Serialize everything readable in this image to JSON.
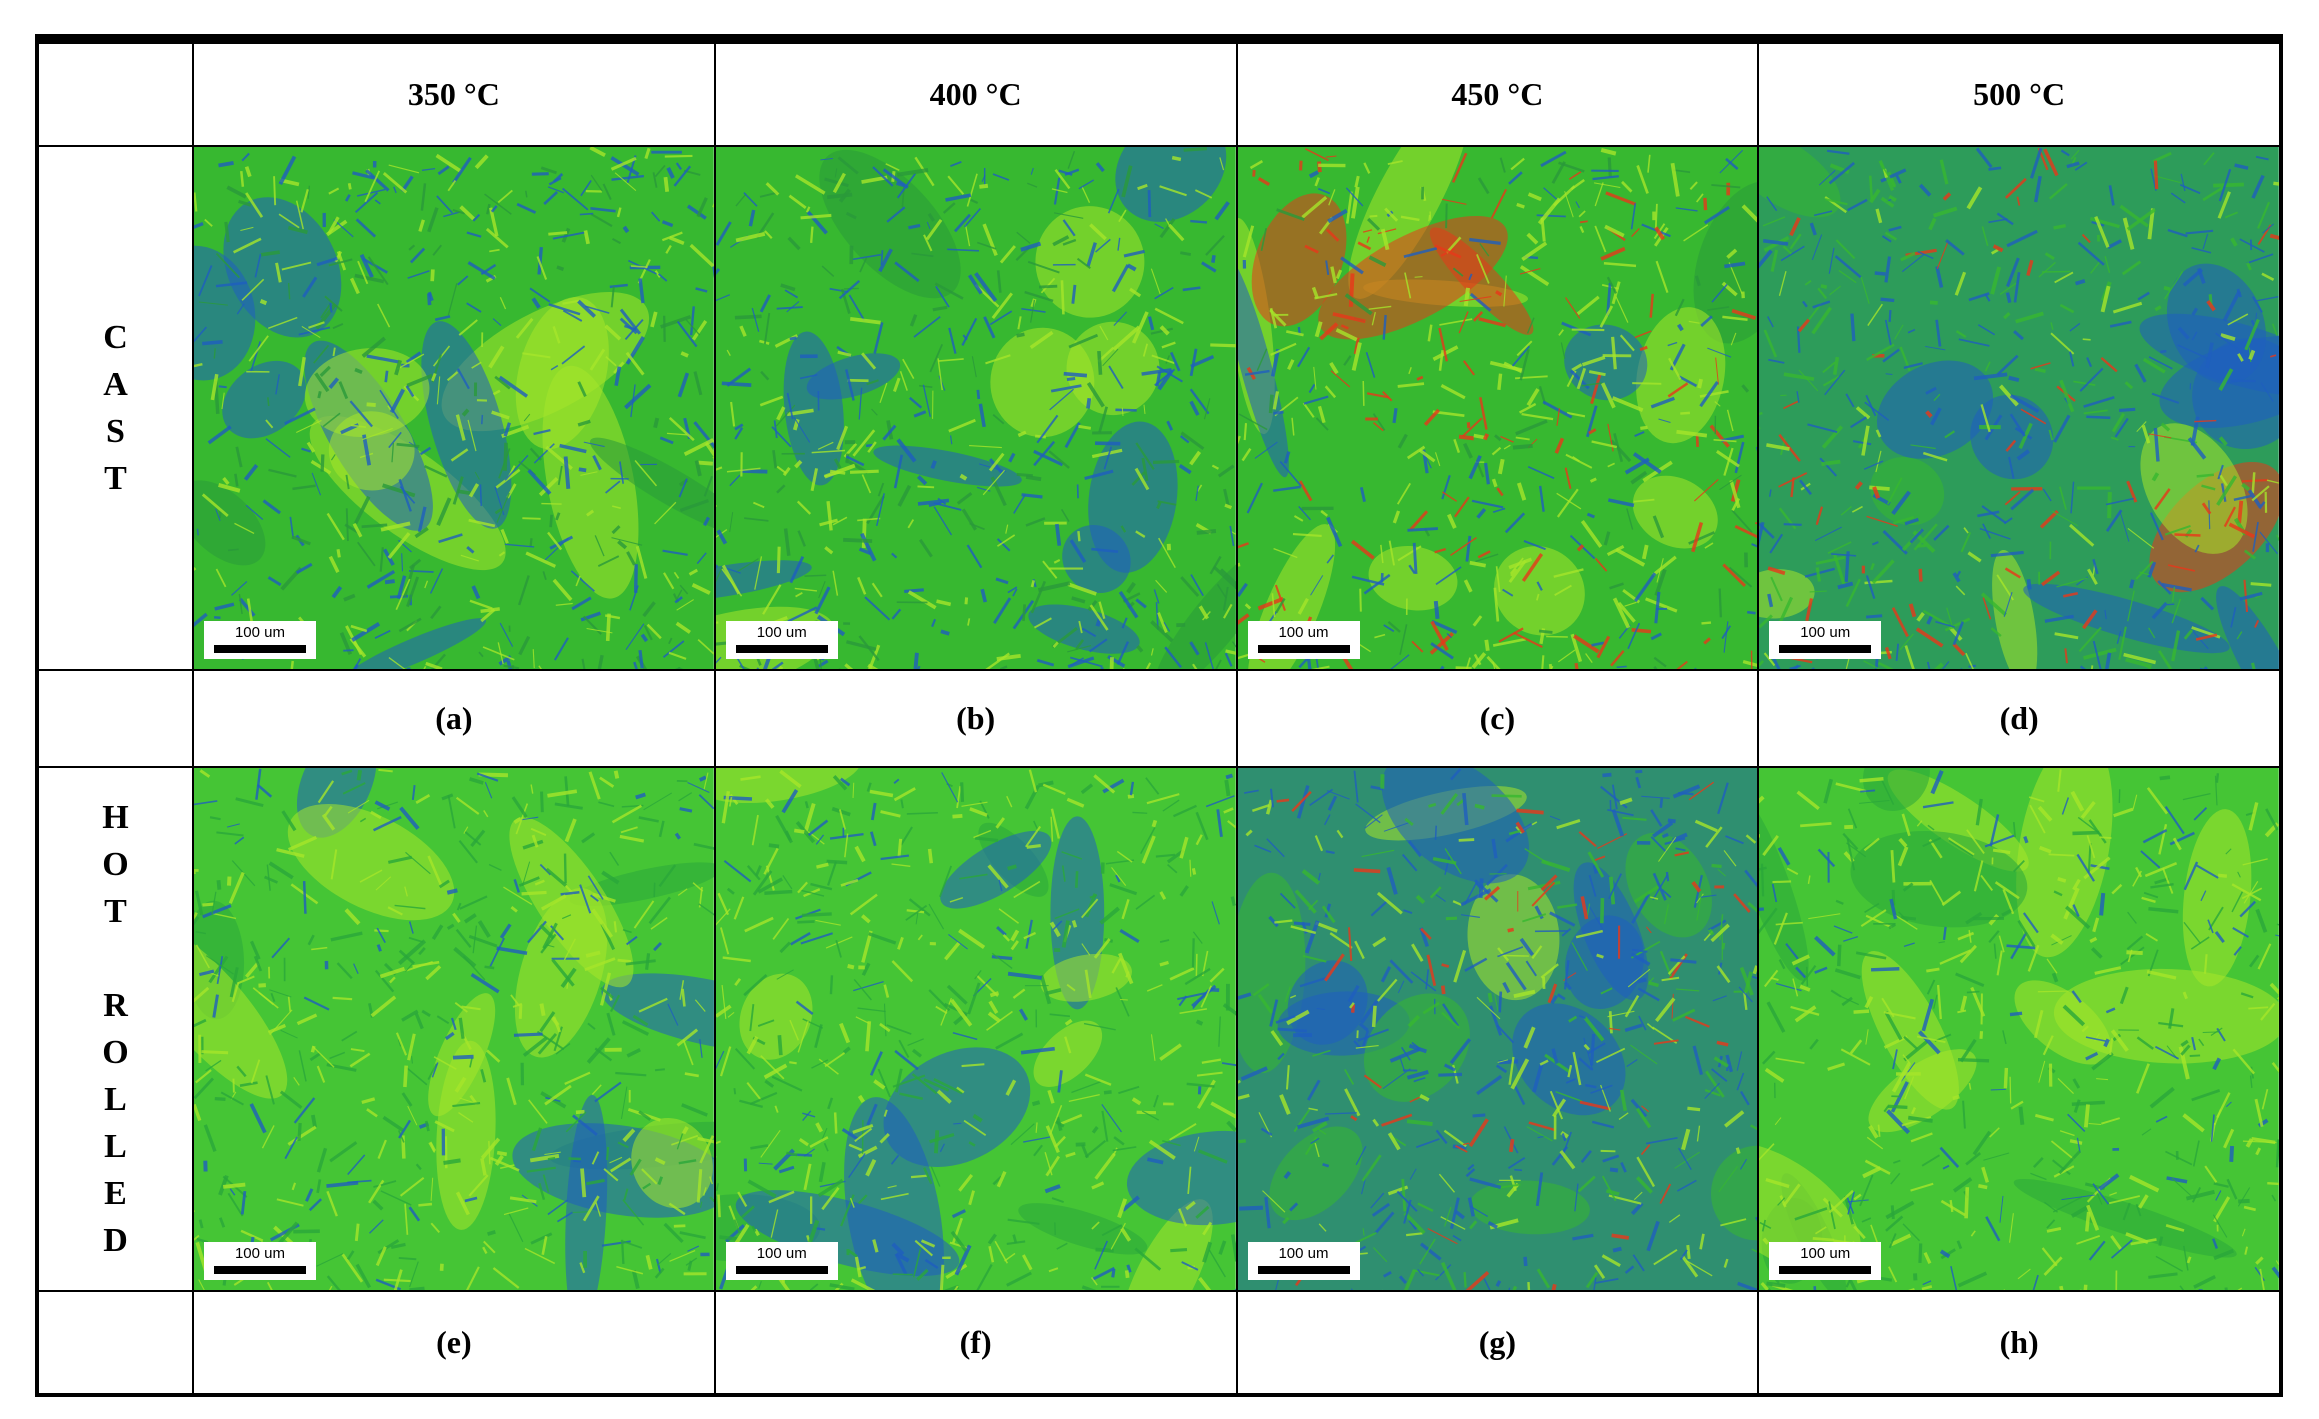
{
  "columns": [
    "350 °C",
    "400 °C",
    "450 °C",
    "500 °C"
  ],
  "rows": [
    {
      "label_letters": [
        "C",
        "A",
        "S",
        "T"
      ],
      "panels": [
        {
          "caption": "(a)",
          "scale_bar": "100 um",
          "tone": "green-blue"
        },
        {
          "caption": "(b)",
          "scale_bar": "100 um",
          "tone": "green-blue"
        },
        {
          "caption": "(c)",
          "scale_bar": "100 um",
          "tone": "green-red"
        },
        {
          "caption": "(d)",
          "scale_bar": "100 um",
          "tone": "green-blue-red"
        }
      ]
    },
    {
      "label_letters": [
        "H",
        "O",
        "T",
        "",
        "R",
        "O",
        "L",
        "L",
        "E",
        "D"
      ],
      "panels": [
        {
          "caption": "(e)",
          "scale_bar": "100 um",
          "tone": "green"
        },
        {
          "caption": "(f)",
          "scale_bar": "100 um",
          "tone": "green"
        },
        {
          "caption": "(g)",
          "scale_bar": "100 um",
          "tone": "blue-green"
        },
        {
          "caption": "(h)",
          "scale_bar": "100 um",
          "tone": "green"
        }
      ]
    }
  ],
  "colors": {
    "blue": "#1f5fbf",
    "green": "#37b830",
    "yellow_green": "#a6e62a",
    "red": "#e8381a",
    "border": "#000000"
  }
}
